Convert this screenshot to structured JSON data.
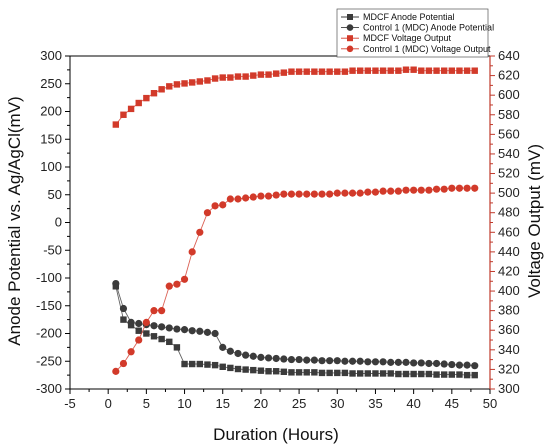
{
  "chart_data": {
    "type": "scatter",
    "xlabel": "Duration (Hours)",
    "ylabel_left": "Anode Potential vs. Ag/AgCl(mV)",
    "ylabel_right": "Voltage Output (mV)",
    "xlim": [
      -5,
      50
    ],
    "x_ticks": [
      -5,
      0,
      5,
      10,
      15,
      20,
      25,
      30,
      35,
      40,
      45,
      50
    ],
    "ylim_left": [
      -300,
      300
    ],
    "y_left_ticks": [
      -300,
      -250,
      -200,
      -150,
      -100,
      -50,
      0,
      50,
      100,
      150,
      200,
      250,
      300
    ],
    "ylim_right": [
      300,
      640
    ],
    "y_right_ticks": [
      300,
      320,
      340,
      360,
      380,
      400,
      420,
      440,
      460,
      480,
      500,
      520,
      540,
      560,
      580,
      600,
      620,
      640
    ],
    "legend_position": "top-right",
    "colors": {
      "black_series": "#3b3b3b",
      "red_series": "#d23a2a",
      "right_axis": "#c0392b"
    },
    "series": [
      {
        "name": "MDCF Anode Potential",
        "axis": "left",
        "marker": "square",
        "color": "#3b3b3b",
        "x": [
          1,
          2,
          3,
          4,
          5,
          6,
          7,
          8,
          9,
          10,
          11,
          12,
          13,
          14,
          15,
          16,
          17,
          18,
          19,
          20,
          21,
          22,
          23,
          24,
          25,
          26,
          27,
          28,
          29,
          30,
          31,
          32,
          33,
          34,
          35,
          36,
          37,
          38,
          39,
          40,
          41,
          42,
          43,
          44,
          45,
          46,
          47,
          48
        ],
        "y": [
          -115,
          -175,
          -185,
          -195,
          -200,
          -205,
          -210,
          -215,
          -225,
          -255,
          -255,
          -255,
          -256,
          -257,
          -260,
          -262,
          -264,
          -265,
          -266,
          -267,
          -268,
          -268,
          -269,
          -270,
          -270,
          -270,
          -270,
          -271,
          -271,
          -271,
          -271,
          -272,
          -272,
          -272,
          -272,
          -272,
          -272,
          -273,
          -273,
          -273,
          -273,
          -273,
          -274,
          -274,
          -274,
          -274,
          -275,
          -275
        ]
      },
      {
        "name": "Control 1 (MDC) Anode Potential",
        "axis": "left",
        "marker": "circle",
        "color": "#3b3b3b",
        "x": [
          1,
          2,
          3,
          4,
          5,
          6,
          7,
          8,
          9,
          10,
          11,
          12,
          13,
          14,
          15,
          16,
          17,
          18,
          19,
          20,
          21,
          22,
          23,
          24,
          25,
          26,
          27,
          28,
          29,
          30,
          31,
          32,
          33,
          34,
          35,
          36,
          37,
          38,
          39,
          40,
          41,
          42,
          43,
          44,
          45,
          46,
          47,
          48
        ],
        "y": [
          -110,
          -155,
          -180,
          -182,
          -184,
          -186,
          -188,
          -190,
          -192,
          -193,
          -195,
          -196,
          -198,
          -200,
          -225,
          -232,
          -236,
          -239,
          -241,
          -243,
          -244,
          -245,
          -246,
          -247,
          -247,
          -248,
          -248,
          -249,
          -249,
          -249,
          -250,
          -250,
          -250,
          -251,
          -251,
          -251,
          -252,
          -252,
          -252,
          -253,
          -253,
          -254,
          -254,
          -255,
          -256,
          -257,
          -257,
          -258
        ]
      },
      {
        "name": "MDCF Voltage Output",
        "axis": "right",
        "marker": "square",
        "color": "#d23a2a",
        "x": [
          1,
          2,
          3,
          4,
          5,
          6,
          7,
          8,
          9,
          10,
          11,
          12,
          13,
          14,
          15,
          16,
          17,
          18,
          19,
          20,
          21,
          22,
          23,
          24,
          25,
          26,
          27,
          28,
          29,
          30,
          31,
          32,
          33,
          34,
          35,
          36,
          37,
          38,
          39,
          40,
          41,
          42,
          43,
          44,
          45,
          46,
          47,
          48
        ],
        "y": [
          570,
          580,
          586,
          592,
          597,
          602,
          606,
          609,
          611,
          612,
          613,
          614,
          615,
          617,
          618,
          618,
          619,
          619,
          620,
          621,
          621,
          622,
          623,
          624,
          624,
          624,
          624,
          624,
          624,
          624,
          624,
          625,
          625,
          625,
          625,
          625,
          625,
          625,
          626,
          626,
          625,
          625,
          625,
          625,
          625,
          625,
          625,
          625
        ]
      },
      {
        "name": "Control 1 (MDC) Voltage Output",
        "axis": "right",
        "marker": "circle",
        "color": "#d23a2a",
        "x": [
          1,
          2,
          3,
          4,
          5,
          6,
          7,
          8,
          9,
          10,
          11,
          12,
          13,
          14,
          15,
          16,
          17,
          18,
          19,
          20,
          21,
          22,
          23,
          24,
          25,
          26,
          27,
          28,
          29,
          30,
          31,
          32,
          33,
          34,
          35,
          36,
          37,
          38,
          39,
          40,
          41,
          42,
          43,
          44,
          45,
          46,
          47,
          48
        ],
        "y": [
          318,
          326,
          338,
          350,
          368,
          380,
          380,
          405,
          407,
          412,
          440,
          460,
          480,
          487,
          488,
          494,
          494,
          495,
          496,
          497,
          497,
          498,
          499,
          499,
          499,
          499,
          499,
          499,
          499,
          500,
          500,
          500,
          500,
          501,
          501,
          502,
          502,
          502,
          503,
          503,
          503,
          503,
          504,
          504,
          505,
          505,
          505,
          505
        ]
      }
    ]
  }
}
